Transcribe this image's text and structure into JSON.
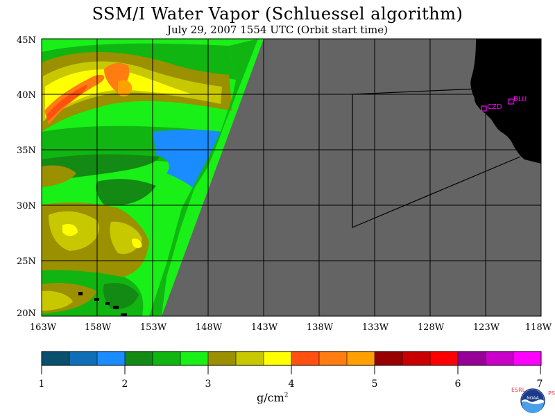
{
  "title": "SSM/I Water Vapor (Schluessel algorithm)",
  "subtitle": "July 29, 2007  1554 UTC  (Orbit start time)",
  "lat_labels": [
    "45N",
    "40N",
    "35N",
    "30N",
    "25N",
    "20N"
  ],
  "lon_labels": [
    "163W",
    "158W",
    "153W",
    "148W",
    "143W",
    "138W",
    "133W",
    "128W",
    "123W",
    "118W"
  ],
  "stations": [
    {
      "label": "CZD",
      "lon": -123.1,
      "lat": 38.6
    },
    {
      "label": "BLU",
      "lon": -120.8,
      "lat": 39.2
    }
  ],
  "colorbar": {
    "ticks": [
      "1",
      "2",
      "3",
      "4",
      "5",
      "6",
      "7"
    ],
    "unit": "g/cm",
    "unit_exp": "2",
    "colors": [
      "#08506e",
      "#0f6fb6",
      "#1a8cff",
      "#138a13",
      "#11b511",
      "#18f018",
      "#9a9000",
      "#c8c800",
      "#ffff00",
      "#ff5010",
      "#ff7d10",
      "#ffa000",
      "#960000",
      "#c80000",
      "#ff0000",
      "#960096",
      "#c800c8",
      "#ff00ff"
    ]
  },
  "logo": {
    "noaa_text": "NOAA",
    "esrl": "ESRL",
    "psd": "PSD"
  }
}
